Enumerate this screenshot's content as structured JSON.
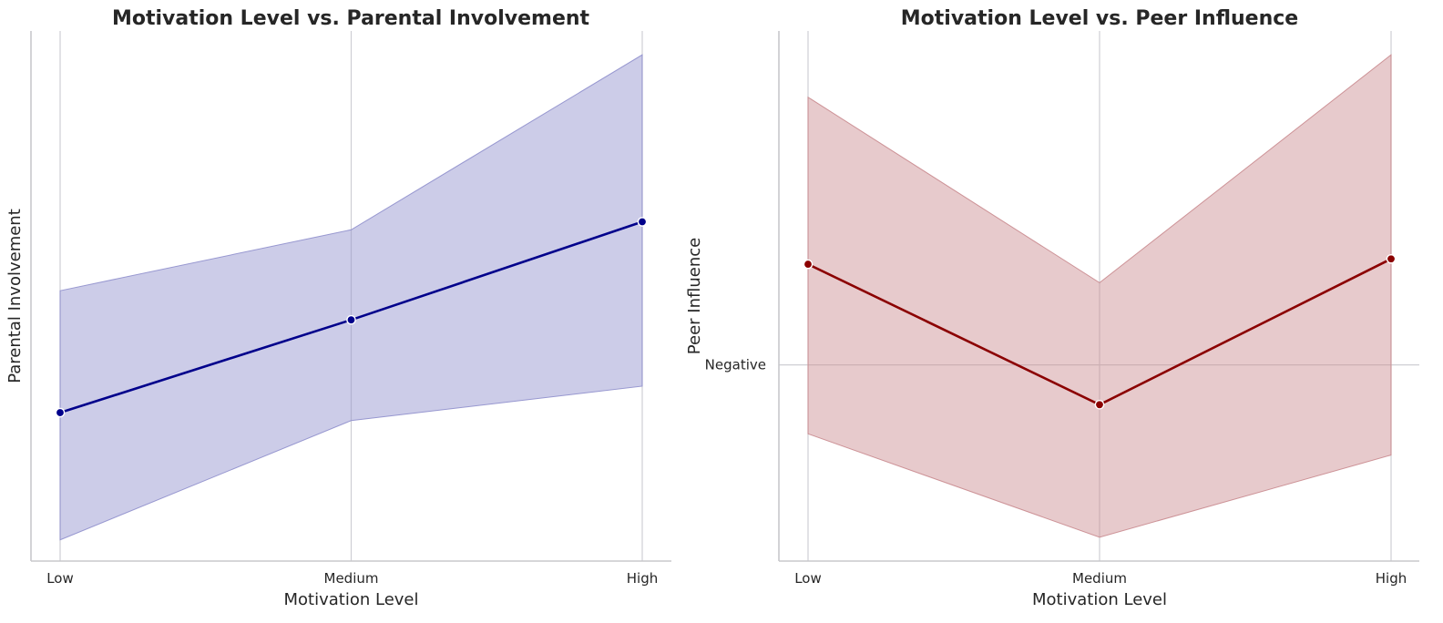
{
  "chart_data": [
    {
      "type": "line",
      "title": "Motivation Level vs. Parental Involvement",
      "xlabel": "Motivation Level",
      "ylabel": "Parental Involvement",
      "categories": [
        "Low",
        "Medium",
        "High"
      ],
      "y_ticks": [],
      "ylim": [
        0,
        1
      ],
      "grid": "x",
      "series": [
        {
          "color": "#00008b",
          "band_color": "#8f8fcc",
          "values": [
            0.28,
            0.455,
            0.64
          ],
          "ci_lower": [
            0.04,
            0.265,
            0.33
          ],
          "ci_upper": [
            0.51,
            0.625,
            0.955
          ]
        }
      ]
    },
    {
      "type": "line",
      "title": "Motivation Level vs. Peer Influence",
      "xlabel": "Motivation Level",
      "ylabel": "Peer Influence",
      "categories": [
        "Low",
        "Medium",
        "High"
      ],
      "y_ticks": [
        {
          "value": 0.37,
          "label": "Negative"
        }
      ],
      "ylim": [
        0,
        1
      ],
      "grid": "x,y",
      "series": [
        {
          "color": "#8b0000",
          "band_color": "#c98a8e",
          "values": [
            0.56,
            0.295,
            0.57
          ],
          "ci_lower": [
            0.24,
            0.045,
            0.2
          ],
          "ci_upper": [
            0.875,
            0.525,
            0.955
          ]
        }
      ]
    }
  ]
}
